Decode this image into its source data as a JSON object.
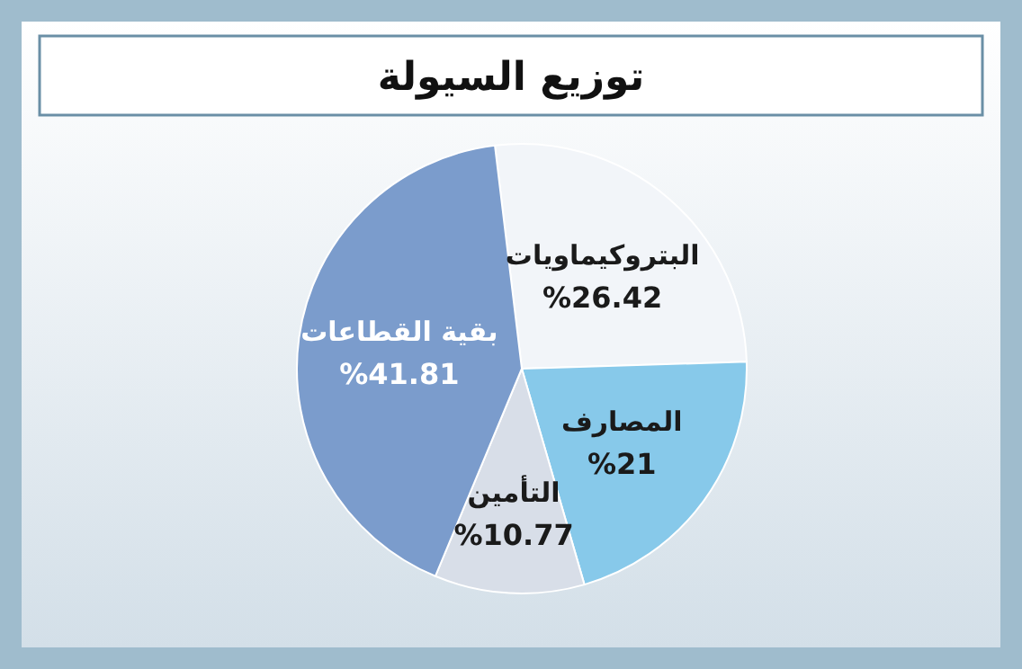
{
  "chart_data": {
    "type": "pie",
    "title": "توزيع السيولة",
    "categories": [
      "البتروكيماويات",
      "المصارف",
      "التأمين",
      "بقية القطاعات"
    ],
    "values": [
      26.42,
      21,
      10.77,
      41.81
    ],
    "value_labels": [
      "%26.42",
      "%21",
      "%10.77",
      "%41.81"
    ],
    "colors": [
      "#f2f5f9",
      "#87c9ea",
      "#d8dee8",
      "#7b9ccc"
    ]
  }
}
